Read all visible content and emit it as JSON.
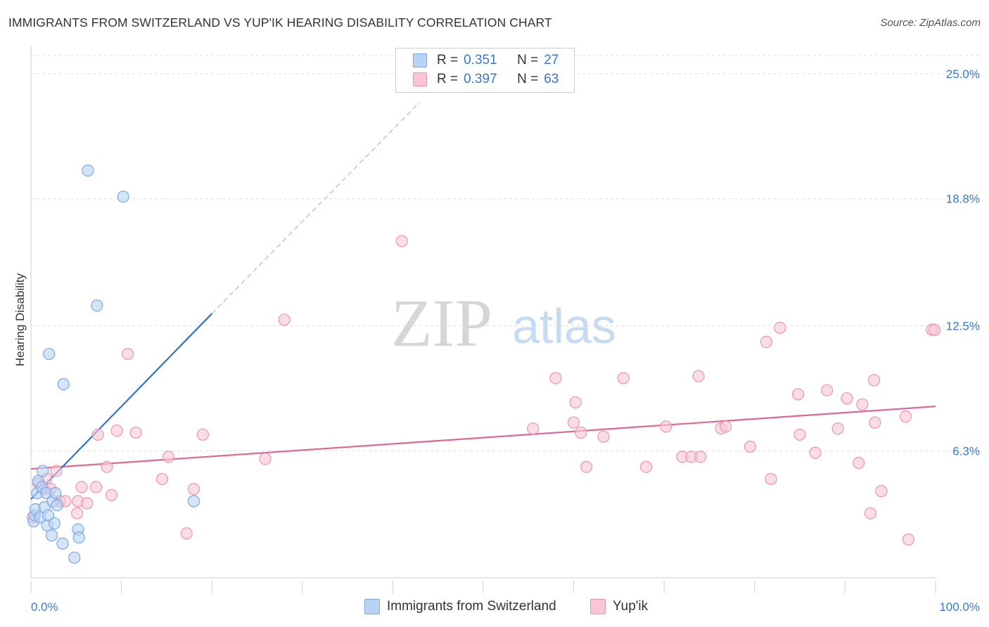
{
  "title": "IMMIGRANTS FROM SWITZERLAND VS YUP'IK HEARING DISABILITY CORRELATION CHART",
  "source": "Source: ZipAtlas.com",
  "watermark": {
    "zip": "ZIP",
    "atlas": "atlas"
  },
  "legend_top": {
    "rows": [
      {
        "r_label": "R =",
        "r_value": "0.351",
        "n_label": "N =",
        "n_value": "27"
      },
      {
        "r_label": "R =",
        "r_value": "0.397",
        "n_label": "N =",
        "n_value": "63"
      }
    ]
  },
  "colors": {
    "blue_fill": "#b9d3f3",
    "blue_stroke": "#7aa8e6",
    "blue_line": "#2f73d0",
    "pink_fill": "#f9c6d5",
    "pink_stroke": "#ee94b0",
    "pink_line": "#e06694",
    "axis_text": "#3a78c9",
    "grid": "#dddddd"
  },
  "chart_data": {
    "type": "scatter",
    "title": "IMMIGRANTS FROM SWITZERLAND VS YUP'IK HEARING DISABILITY CORRELATION CHART",
    "xlabel": "",
    "ylabel": "Hearing Disability",
    "xlim": [
      0,
      100
    ],
    "ylim": [
      0,
      25.9
    ],
    "x_tick_labels": [
      "0.0%",
      "100.0%"
    ],
    "y_ticks": [
      6.3,
      12.5,
      18.8,
      25.0
    ],
    "y_tick_labels": [
      "6.3%",
      "12.5%",
      "18.8%",
      "25.0%"
    ],
    "grid": true,
    "legend_position": "bottom",
    "series": [
      {
        "name": "Immigrants from Switzerland",
        "color": "#b9d3f3",
        "points": [
          [
            0.3,
            2.8
          ],
          [
            0.4,
            3.1
          ],
          [
            0.5,
            3.4
          ],
          [
            0.7,
            4.2
          ],
          [
            0.8,
            4.8
          ],
          [
            1.0,
            3.0
          ],
          [
            1.2,
            4.5
          ],
          [
            1.3,
            5.3
          ],
          [
            1.5,
            3.5
          ],
          [
            1.7,
            4.2
          ],
          [
            1.8,
            2.6
          ],
          [
            1.9,
            3.1
          ],
          [
            2.0,
            11.1
          ],
          [
            2.3,
            2.1
          ],
          [
            2.4,
            3.8
          ],
          [
            2.6,
            2.7
          ],
          [
            2.7,
            4.2
          ],
          [
            2.9,
            3.6
          ],
          [
            3.5,
            1.7
          ],
          [
            3.6,
            9.6
          ],
          [
            4.8,
            1.0
          ],
          [
            5.2,
            2.4
          ],
          [
            5.3,
            2.0
          ],
          [
            6.3,
            20.2
          ],
          [
            7.3,
            13.5
          ],
          [
            10.2,
            18.9
          ],
          [
            18.0,
            3.8
          ]
        ],
        "trend": {
          "x": [
            0,
            20
          ],
          "y": [
            3.9,
            13.1
          ],
          "dashed_to": [
            43,
            23.6
          ]
        }
      },
      {
        "name": "Yup'ik",
        "color": "#f9c6d5",
        "points": [
          [
            0.2,
            3.0
          ],
          [
            0.8,
            4.7
          ],
          [
            1.4,
            4.4
          ],
          [
            1.7,
            4.9
          ],
          [
            2.2,
            4.4
          ],
          [
            2.8,
            5.3
          ],
          [
            3.2,
            3.8
          ],
          [
            3.8,
            3.8
          ],
          [
            5.1,
            3.2
          ],
          [
            5.2,
            3.8
          ],
          [
            5.6,
            4.5
          ],
          [
            6.2,
            3.7
          ],
          [
            7.2,
            4.5
          ],
          [
            7.4,
            7.1
          ],
          [
            8.4,
            5.5
          ],
          [
            8.9,
            4.1
          ],
          [
            9.5,
            7.3
          ],
          [
            10.7,
            11.1
          ],
          [
            11.6,
            7.2
          ],
          [
            14.5,
            4.9
          ],
          [
            15.2,
            6.0
          ],
          [
            17.2,
            2.2
          ],
          [
            18.0,
            4.4
          ],
          [
            19.0,
            7.1
          ],
          [
            25.9,
            5.9
          ],
          [
            28.0,
            12.8
          ],
          [
            41.0,
            16.7
          ],
          [
            55.5,
            7.4
          ],
          [
            58.0,
            9.9
          ],
          [
            60.0,
            7.7
          ],
          [
            60.2,
            8.7
          ],
          [
            60.8,
            7.2
          ],
          [
            61.4,
            5.5
          ],
          [
            63.3,
            7.0
          ],
          [
            65.5,
            9.9
          ],
          [
            68.0,
            5.5
          ],
          [
            70.2,
            7.5
          ],
          [
            72.0,
            6.0
          ],
          [
            73.0,
            6.0
          ],
          [
            73.8,
            10.0
          ],
          [
            74.0,
            6.0
          ],
          [
            76.3,
            7.4
          ],
          [
            76.8,
            7.5
          ],
          [
            79.5,
            6.5
          ],
          [
            81.3,
            11.7
          ],
          [
            81.8,
            4.9
          ],
          [
            82.8,
            12.4
          ],
          [
            84.8,
            9.1
          ],
          [
            85.0,
            7.1
          ],
          [
            86.7,
            6.2
          ],
          [
            88.0,
            9.3
          ],
          [
            89.2,
            7.4
          ],
          [
            90.2,
            8.9
          ],
          [
            91.5,
            5.7
          ],
          [
            91.9,
            8.6
          ],
          [
            92.8,
            3.2
          ],
          [
            93.2,
            9.8
          ],
          [
            93.3,
            7.7
          ],
          [
            94.0,
            4.3
          ],
          [
            96.7,
            8.0
          ],
          [
            97.0,
            1.9
          ],
          [
            99.6,
            12.3
          ],
          [
            99.9,
            12.3
          ]
        ],
        "trend": {
          "x": [
            0,
            100
          ],
          "y": [
            5.4,
            8.5
          ]
        }
      }
    ]
  }
}
